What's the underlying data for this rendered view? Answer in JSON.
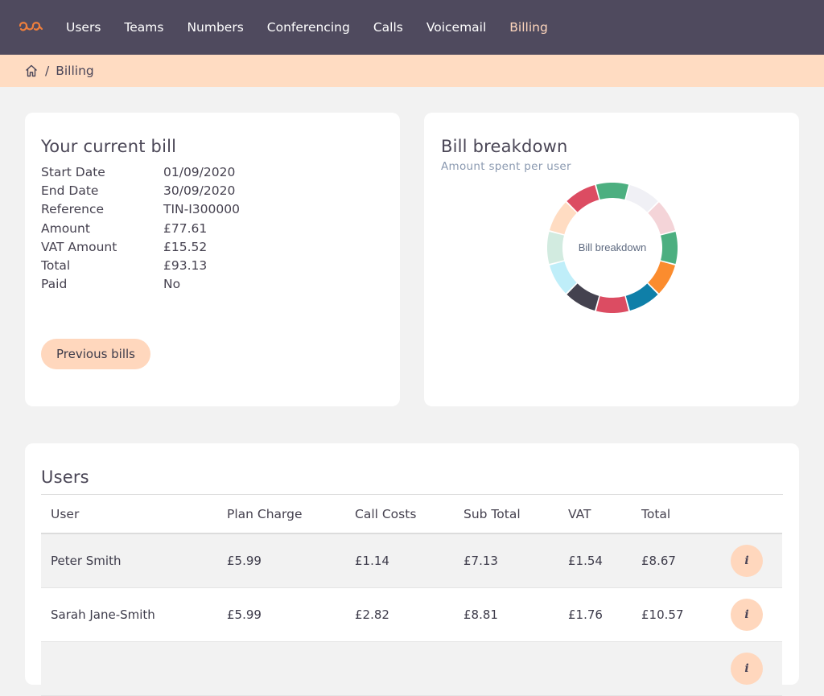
{
  "nav": {
    "items": [
      {
        "label": "Users",
        "active": false
      },
      {
        "label": "Teams",
        "active": false
      },
      {
        "label": "Numbers",
        "active": false
      },
      {
        "label": "Conferencing",
        "active": false
      },
      {
        "label": "Calls",
        "active": false
      },
      {
        "label": "Voicemail",
        "active": false
      },
      {
        "label": "Billing",
        "active": true
      }
    ]
  },
  "breadcrumb": {
    "separator": "/",
    "current": "Billing"
  },
  "bill": {
    "title": "Your current bill",
    "rows": [
      {
        "label": "Start Date",
        "value": "01/09/2020"
      },
      {
        "label": "End Date",
        "value": "30/09/2020"
      },
      {
        "label": "Reference",
        "value": "TIN-I300000"
      },
      {
        "label": "Amount",
        "value": "£77.61"
      },
      {
        "label": "VAT Amount",
        "value": "£15.52"
      },
      {
        "label": "Total",
        "value": "£93.13"
      },
      {
        "label": "Paid",
        "value": "No"
      }
    ],
    "previous_label": "Previous bills"
  },
  "breakdown": {
    "title": "Bill breakdown",
    "subtitle": "Amount spent per user",
    "center_label": "Bill breakdown"
  },
  "chart_data": {
    "type": "pie",
    "title": "Bill breakdown",
    "center_label": "Bill breakdown",
    "slices": [
      {
        "value": 1,
        "color": "#4caf80"
      },
      {
        "value": 1,
        "color": "#f0f0f5"
      },
      {
        "value": 1,
        "color": "#f4d4d8"
      },
      {
        "value": 1,
        "color": "#4caf80"
      },
      {
        "value": 1,
        "color": "#fb8c2e"
      },
      {
        "value": 1,
        "color": "#0f7fa8"
      },
      {
        "value": 1,
        "color": "#dc4c62"
      },
      {
        "value": 1,
        "color": "#44424f"
      },
      {
        "value": 1,
        "color": "#bfeef9"
      },
      {
        "value": 1,
        "color": "#d2ebe0"
      },
      {
        "value": 1,
        "color": "#ffdcc2"
      },
      {
        "value": 1,
        "color": "#dc4c62"
      }
    ]
  },
  "users": {
    "title": "Users",
    "columns": [
      "User",
      "Plan Charge",
      "Call Costs",
      "Sub Total",
      "VAT",
      "Total"
    ],
    "info_glyph": "i",
    "rows": [
      {
        "user": "Peter Smith",
        "plan": "£5.99",
        "calls": "£1.14",
        "subtotal": "£7.13",
        "vat": "£1.54",
        "total": "£8.67"
      },
      {
        "user": "Sarah Jane-Smith",
        "plan": "£5.99",
        "calls": "£2.82",
        "subtotal": "£8.81",
        "vat": "£1.76",
        "total": "£10.57"
      },
      {
        "user": "",
        "plan": "",
        "calls": "",
        "subtotal": "",
        "vat": "",
        "total": ""
      }
    ]
  },
  "colors": {
    "nav_bg": "#4f4a5e",
    "accent": "#ffd7bd",
    "breadcrumb_bg": "#ffdcc2",
    "logo": "#f07f3c"
  }
}
